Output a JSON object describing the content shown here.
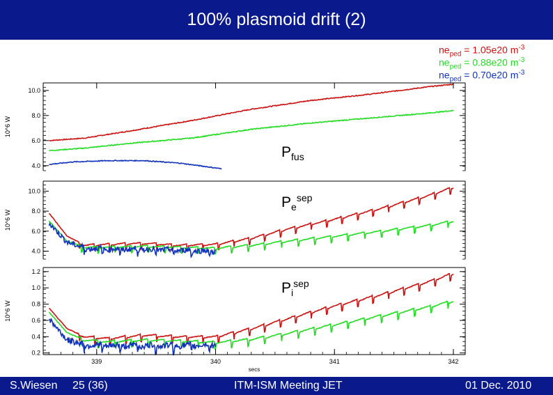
{
  "header": {
    "title": "100% plasmoid drift (2)"
  },
  "footer": {
    "author": "S.Wiesen",
    "slide": "25 (36)",
    "meeting": "ITM-ISM Meeting JET",
    "date": "01 Dec. 2010"
  },
  "colors": {
    "bar": "#0a1a8c",
    "red": "#cc1111",
    "green": "#22dd22",
    "blue": "#1133bb"
  },
  "legend": [
    {
      "prefix": "ne",
      "sub": "ped",
      "text": " = 1.05e20 m",
      "sup": "-3",
      "color": "#cc1111"
    },
    {
      "prefix": "ne",
      "sub": "ped",
      "text": " = 0.88e20 m",
      "sup": "-3",
      "color": "#22dd22"
    },
    {
      "prefix": "ne",
      "sub": "ped",
      "text": " = 0.70e20 m",
      "sup": "-3",
      "color": "#1133bb"
    }
  ],
  "chart_data": {
    "type": "line",
    "xlabel": "secs",
    "x_ticks": [
      "339",
      "340",
      "341",
      "342"
    ],
    "xlim": [
      338.55,
      342.1
    ],
    "panels": [
      {
        "label": {
          "main": "P",
          "sub": "fus",
          "sup": ""
        },
        "ylabel": "10^6 W",
        "y_ticks": [
          "10.0",
          "8.0",
          "6.0",
          "4.0"
        ],
        "ylim": [
          3.6,
          10.6
        ],
        "series": [
          {
            "color": "red",
            "x": [
              338.6,
              338.9,
              339.3,
              339.8,
              340.3,
              340.8,
              341.3,
              341.8,
              342.0
            ],
            "y": [
              6.0,
              6.2,
              6.8,
              7.6,
              8.5,
              9.2,
              9.7,
              10.3,
              10.5
            ]
          },
          {
            "color": "green",
            "x": [
              338.6,
              338.9,
              339.3,
              339.8,
              340.3,
              340.8,
              341.3,
              341.8,
              342.0
            ],
            "y": [
              5.2,
              5.4,
              5.8,
              6.2,
              6.9,
              7.4,
              7.8,
              8.2,
              8.4
            ]
          },
          {
            "color": "blue",
            "x": [
              338.6,
              338.8,
              339.1,
              339.4,
              339.7,
              339.9,
              340.05
            ],
            "y": [
              4.1,
              4.3,
              4.4,
              4.4,
              4.2,
              3.95,
              3.75
            ]
          }
        ]
      },
      {
        "label": {
          "main": "P",
          "sub": "e",
          "sup": "sep"
        },
        "ylabel": "10^6 W",
        "y_ticks": [
          "10.0",
          "8.0",
          "6.0",
          "4.0"
        ],
        "ylim": [
          3.2,
          11.0
        ],
        "series": [
          {
            "color": "red",
            "x": [
              338.6,
              338.75,
              338.9,
              339.1,
              339.4,
              339.7,
              340.0,
              340.3,
              340.6,
              341.0,
              341.4,
              341.8,
              342.0
            ],
            "y": [
              7.8,
              5.5,
              4.6,
              4.7,
              4.8,
              4.6,
              4.7,
              5.3,
              6.2,
              7.2,
              8.3,
              9.6,
              10.4
            ]
          },
          {
            "color": "green",
            "x": [
              338.6,
              338.75,
              338.9,
              339.1,
              339.4,
              339.7,
              340.0,
              340.3,
              340.6,
              341.0,
              341.4,
              341.8,
              342.0
            ],
            "y": [
              7.0,
              5.0,
              4.4,
              4.4,
              4.5,
              4.4,
              4.3,
              4.6,
              5.0,
              5.5,
              6.0,
              6.6,
              7.0
            ]
          },
          {
            "color": "blue",
            "x": [
              338.6,
              338.75,
              338.9,
              339.1,
              339.4,
              339.7,
              340.0
            ],
            "y": [
              6.8,
              4.9,
              4.3,
              4.2,
              4.2,
              4.1,
              4.0
            ]
          }
        ]
      },
      {
        "label": {
          "main": "P",
          "sub": "i",
          "sup": "sep"
        },
        "ylabel": "10^6 W",
        "y_ticks": [
          "1.2",
          "1.0",
          "0.8",
          "0.6",
          "0.4",
          "0.2"
        ],
        "ylim": [
          0.18,
          1.25
        ],
        "series": [
          {
            "color": "red",
            "x": [
              338.6,
              338.75,
              338.9,
              339.1,
              339.4,
              339.7,
              340.0,
              340.3,
              340.6,
              341.0,
              341.4,
              341.8,
              342.0
            ],
            "y": [
              0.75,
              0.5,
              0.4,
              0.38,
              0.42,
              0.4,
              0.4,
              0.5,
              0.62,
              0.78,
              0.92,
              1.08,
              1.18
            ]
          },
          {
            "color": "green",
            "x": [
              338.6,
              338.75,
              338.9,
              339.1,
              339.4,
              339.7,
              340.0,
              340.3,
              340.6,
              341.0,
              341.4,
              341.8,
              342.0
            ],
            "y": [
              0.7,
              0.45,
              0.36,
              0.34,
              0.36,
              0.35,
              0.33,
              0.37,
              0.44,
              0.55,
              0.66,
              0.77,
              0.84
            ]
          },
          {
            "color": "blue",
            "x": [
              338.6,
              338.75,
              338.9,
              339.1,
              339.4,
              339.7,
              340.0
            ],
            "y": [
              0.62,
              0.36,
              0.3,
              0.29,
              0.29,
              0.29,
              0.3
            ]
          }
        ]
      }
    ]
  }
}
